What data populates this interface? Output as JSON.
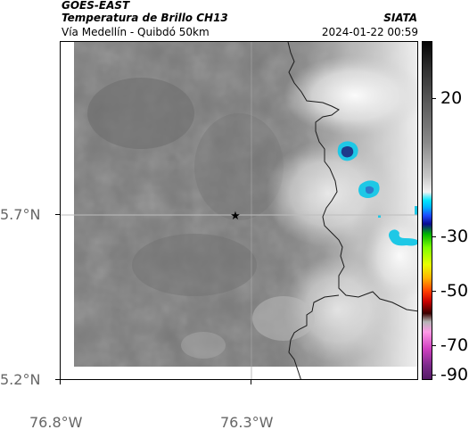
{
  "header": {
    "satellite": "GOES-EAST",
    "product": "Temperatura de Brillo CH13",
    "brand": "SIATA",
    "route": "Vía Medellín - Quibdó 50km",
    "timestamp": "2024-01-22 00:59"
  },
  "axes": {
    "lat_labels": [
      "5.7°N",
      "5.2°N"
    ],
    "lon_labels": [
      "76.8°W",
      "76.3°W"
    ]
  },
  "colorbar": {
    "labels": [
      "20",
      "-30",
      "-50",
      "-70",
      "-90"
    ],
    "values": [
      20,
      -30,
      -50,
      -70,
      -90
    ]
  },
  "map": {
    "marker_icon": "star-icon",
    "colors": {
      "background_gray": "#7a7a7a",
      "cold_cloud": "#1aa9d6",
      "cold_core": "#1e3a8a",
      "border_line": "#1a1a1a",
      "grid_line": "#bdbdbd"
    }
  }
}
